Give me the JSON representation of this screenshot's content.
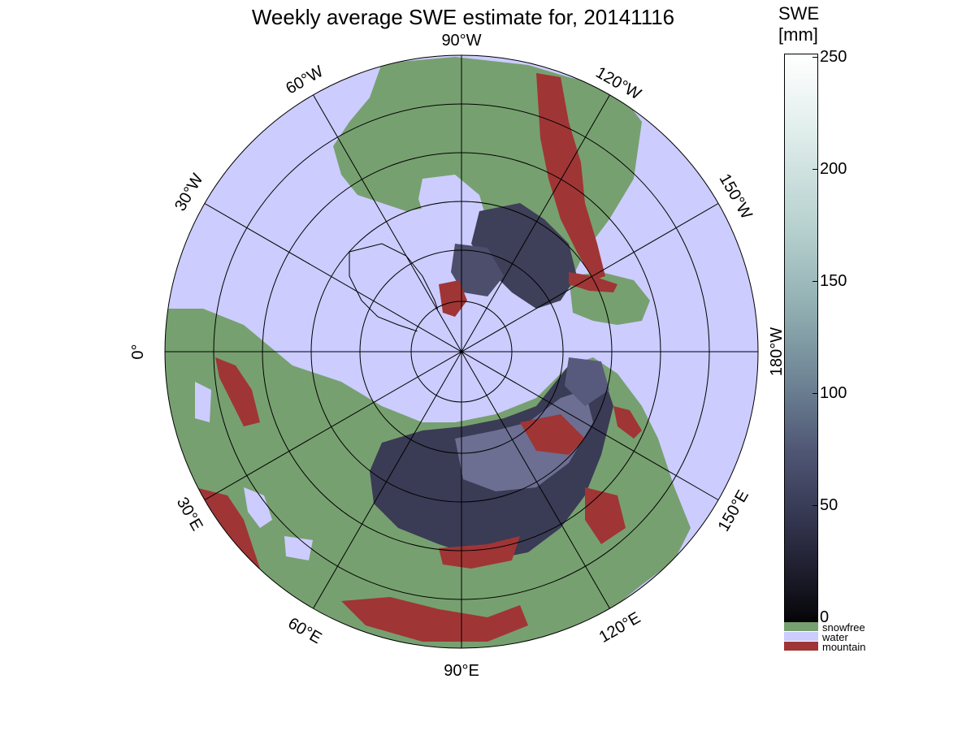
{
  "title": "Weekly average SWE estimate for, 20141116",
  "colorbar": {
    "title_line1": "SWE",
    "title_line2": "[mm]",
    "ticks": [
      "250",
      "200",
      "150",
      "100",
      "50",
      "0"
    ],
    "tick_values": [
      250,
      200,
      150,
      100,
      50,
      0
    ]
  },
  "categories": [
    {
      "label": "snowfree",
      "color": "#77a070"
    },
    {
      "label": "water",
      "color": "#ccccff"
    },
    {
      "label": "mountain",
      "color": "#a03535"
    }
  ],
  "longitude_labels": {
    "top": "90°W",
    "w120": "120°W",
    "w150": "150°W",
    "deg180": "180°W",
    "e150": "150°E",
    "e120": "120°E",
    "bottom": "90°E",
    "e60": "60°E",
    "e30": "30°E",
    "zero": "0°",
    "w30": "30°W",
    "w60": "60°W"
  },
  "colors": {
    "ocean": "#ccccff",
    "snowfree": "#77a070",
    "mountain": "#a03535",
    "snow_low": "#2a2a3e",
    "snow_mid": "#55587a"
  }
}
